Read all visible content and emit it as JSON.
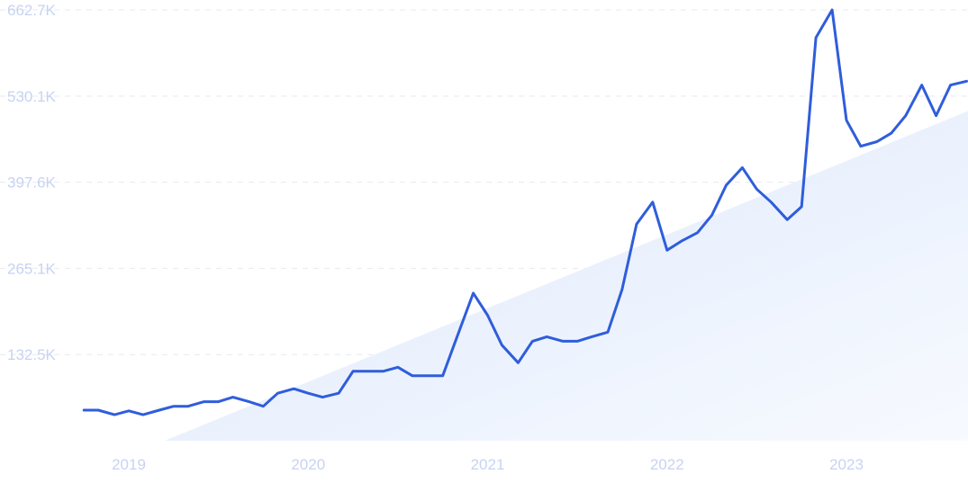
{
  "chart_data": {
    "type": "line",
    "title": "",
    "xlabel": "",
    "ylabel": "",
    "ylim": [
      0,
      662700
    ],
    "y_ticks": [
      {
        "value": 132500,
        "label": "132.5K"
      },
      {
        "value": 265100,
        "label": "265.1K"
      },
      {
        "value": 397600,
        "label": "397.6K"
      },
      {
        "value": 530100,
        "label": "530.1K"
      },
      {
        "value": 662700,
        "label": "662.7K"
      }
    ],
    "x_ticks": [
      {
        "value": 2019.0,
        "label": "2019"
      },
      {
        "value": 2020.0,
        "label": "2020"
      },
      {
        "value": 2021.0,
        "label": "2021"
      },
      {
        "value": 2022.0,
        "label": "2022"
      },
      {
        "value": 2023.0,
        "label": "2023"
      }
    ],
    "grid": true,
    "trend_area": {
      "x_start": 2019.2,
      "x_end": 2023.72,
      "y_start": 0,
      "y_end": 512000
    },
    "colors": {
      "line": "#2f5ddb",
      "trend": "#e3edfb",
      "grid": "#e6e9f0",
      "ticks": "#c7d3f2"
    },
    "series": [
      {
        "x": [
          2018.75,
          2018.83,
          2018.92,
          2019.0,
          2019.08,
          2019.17,
          2019.25,
          2019.33,
          2019.42,
          2019.5,
          2019.58,
          2019.67,
          2019.75,
          2019.83,
          2019.92,
          2020.0,
          2020.08,
          2020.17,
          2020.25,
          2020.33,
          2020.42,
          2020.5,
          2020.58,
          2020.67,
          2020.75,
          2020.83,
          2020.92,
          2021.0,
          2021.08,
          2021.17,
          2021.25,
          2021.33,
          2021.42,
          2021.5,
          2021.58,
          2021.67,
          2021.75,
          2021.83,
          2021.92,
          2022.0,
          2022.08,
          2022.17,
          2022.25,
          2022.33,
          2022.42,
          2022.5,
          2022.58,
          2022.67,
          2022.75,
          2022.83,
          2022.92,
          2023.0,
          2023.08,
          2023.17,
          2023.25,
          2023.33,
          2023.42,
          2023.5,
          2023.58,
          2023.67
        ],
        "values": [
          47000,
          47000,
          40000,
          46000,
          40000,
          47000,
          53000,
          53000,
          60000,
          60000,
          67000,
          60000,
          53000,
          73000,
          80000,
          73000,
          67000,
          73000,
          107000,
          107000,
          107000,
          113000,
          100000,
          100000,
          100000,
          160000,
          227000,
          193000,
          147000,
          120000,
          153000,
          160000,
          153000,
          153000,
          160000,
          167000,
          233000,
          333000,
          367000,
          293000,
          307000,
          320000,
          347000,
          393000,
          420000,
          387000,
          367000,
          340000,
          360000,
          620000,
          662700,
          493000,
          453000,
          460000,
          473000,
          500000,
          547000,
          500000,
          547000,
          553000
        ]
      }
    ]
  }
}
